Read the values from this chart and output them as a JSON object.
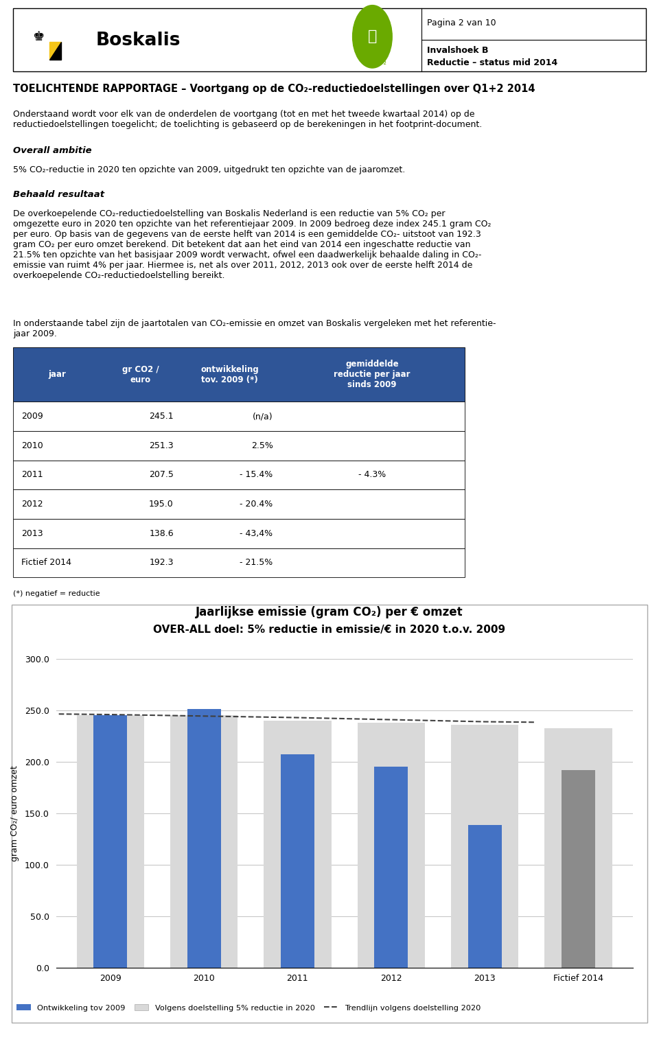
{
  "title_line1": "Jaarlijkse emissie (gram CO₂) per € omzet",
  "title_line2": "OVER-ALL doel: 5% reductie in emissie/€ in 2020 t.o.v. 2009",
  "ylabel": "gram CO₂/ euro omzet",
  "categories": [
    "2009",
    "2010",
    "2011",
    "2012",
    "2013",
    "Fictief 2014"
  ],
  "actual_values": [
    245.1,
    251.3,
    207.5,
    195.0,
    138.6,
    192.3
  ],
  "target_values": [
    245.1,
    245.1,
    240.0,
    238.0,
    236.0,
    233.0
  ],
  "bar_color_blue": "#4472C4",
  "bar_color_gray_light": "#D9D9D9",
  "bar_color_gray_dark": "#8B8B8B",
  "trendline_color": "#404040",
  "header_bg_color": "#2F5597",
  "ylim": [
    0,
    300
  ],
  "ytick_labels": [
    "0.0",
    "50.0",
    "100.0",
    "150.0",
    "200.0",
    "250.0",
    "300.0"
  ],
  "ytick_vals": [
    0,
    50,
    100,
    150,
    200,
    250,
    300
  ],
  "page_text": "Pagina 2 van 10",
  "sidebar_text1": "Invalshoek B",
  "sidebar_text2": "Reductie – status mid 2014",
  "header_text": "TOELICHTENDE RAPPORTAGE – Voortgang op de CO₂-reductiedoelstellingen over Q1+2 2014",
  "body_text": "Onderstaand wordt voor elk van de onderdelen de voortgang (tot en met het tweede kwartaal 2014) op de\nreductiedoelstellingen toegelicht; de toelichting is gebaseerd op de berekeningen in het footprint-document.",
  "overall_ambitie_title": "Overall ambitie",
  "overall_ambitie_text": "5% CO₂-reductie in 2020 ten opzichte van 2009, uitgedrukt ten opzichte van de jaaromzet.",
  "behaald_title": "Behaald resultaat",
  "behaald_text": "De overkoepelende CO₂-reductiedoelstelling van Boskalis Nederland is een reductie van 5% CO₂ per\nomgezette euro in 2020 ten opzichte van het referentiejaar 2009. In 2009 bedroeg deze index 245.1 gram CO₂\nper euro. Op basis van de gegevens van de eerste helft van 2014 is een gemiddelde CO₂- uitstoot van 192.3\ngram CO₂ per euro omzet berekend. Dit betekent dat aan het eind van 2014 een ingeschatte reductie van\n21.5% ten opzichte van het basisjaar 2009 wordt verwacht, ofwel een daadwerkelijk behaalde daling in CO₂-\nemissie van ruimt 4% per jaar. Hiermee is, net als over 2011, 2012, 2013 ook over de eerste helft 2014 de\noverkoepelende CO₂-reductiedoelstelling bereikt.",
  "tabel_intro": "In onderstaande tabel zijn de jaartotalen van CO₂-emissie en omzet van Boskalis vergeleken met het referentie-\njaar 2009.",
  "table_col_headers": [
    "jaar",
    "gr CO2 /\neuro",
    "ontwikkeling\ntov. 2009 (*)",
    "gemiddelde\nreductie per jaar\nsinds 2009"
  ],
  "table_rows": [
    [
      "2009",
      "245.1",
      "(n/a)",
      ""
    ],
    [
      "2010",
      "251.3",
      "2.5%",
      ""
    ],
    [
      "2011",
      "207.5",
      "- 15.4%",
      "- 4.3%"
    ],
    [
      "2012",
      "195.0",
      "- 20.4%",
      ""
    ],
    [
      "2013",
      "138.6",
      "- 43,4%",
      ""
    ],
    [
      "Fictief 2014",
      "192.3",
      "- 21.5%",
      ""
    ]
  ],
  "footnote": "(*) negatief = reductie",
  "legend_label1": "Ontwikkeling tov 2009",
  "legend_label2": "Volgens doelstelling 5% reductie in 2020",
  "legend_label3": "Trendlijn volgens doelstelling 2020"
}
